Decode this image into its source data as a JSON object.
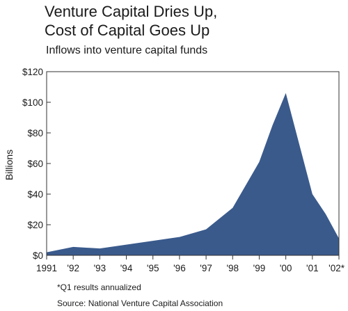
{
  "chart_data": {
    "type": "area",
    "title_lines": [
      "Venture Capital Dries Up,",
      "Cost of Capital Goes Up"
    ],
    "subtitle": "Inflows into venture capital funds",
    "ylabel": "Billions",
    "xlabel": "",
    "ylim": [
      0,
      120
    ],
    "yticks": [
      0,
      20,
      40,
      60,
      80,
      100,
      120
    ],
    "ytick_labels": [
      "$0",
      "$20",
      "$40",
      "$60",
      "$80",
      "$100",
      "$120"
    ],
    "xlim": [
      1991,
      2002
    ],
    "xticks": [
      1991,
      1992,
      1993,
      1994,
      1995,
      1996,
      1997,
      1998,
      1999,
      2000,
      2001,
      2002
    ],
    "xtick_labels": [
      "1991",
      "'92",
      "'93",
      "'94",
      "'95",
      "'96",
      "'97",
      "'98",
      "'99",
      "'00",
      "'01",
      "'02*"
    ],
    "grid": false,
    "fill_color": "#3a5a8c",
    "series": [
      {
        "x": [
          1991.0,
          1992.0,
          1993.0,
          1994.0,
          1995.0,
          1996.0,
          1997.0,
          1998.0,
          1999.0,
          1999.5,
          2000.0,
          2000.5,
          2001.0,
          2001.5,
          2002.0
        ],
        "values": [
          2,
          5.5,
          4.5,
          7,
          9.5,
          12,
          17,
          31,
          61,
          85,
          106,
          73,
          40,
          27,
          11
        ]
      }
    ],
    "footnotes": [
      "*Q1 results annualized",
      "Source: National Venture Capital Association"
    ]
  }
}
